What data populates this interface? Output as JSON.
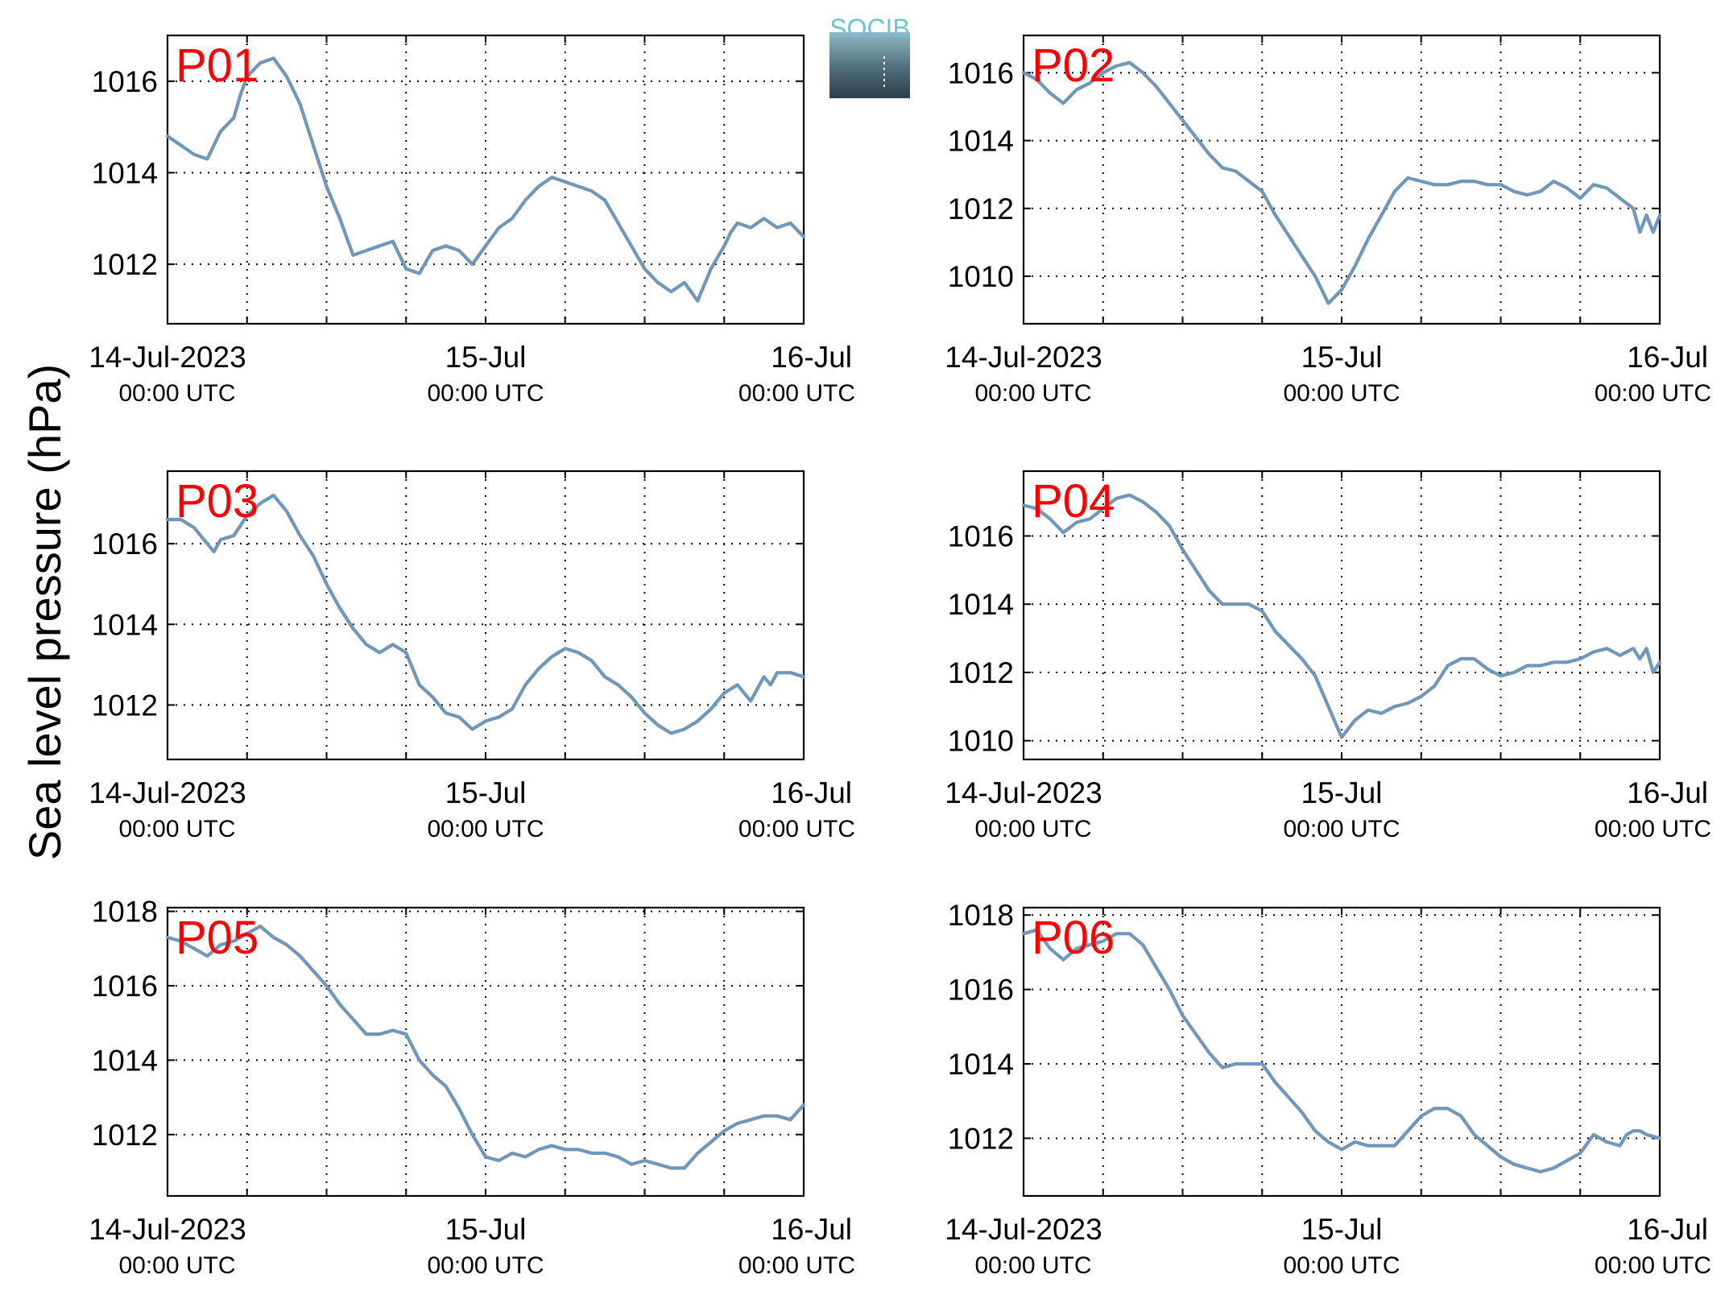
{
  "figure": {
    "ylabel": "Sea level pressure (hPa)",
    "logo_text": "SOCIB",
    "colors": {
      "series": "#6f97bb",
      "panel_label": "#ff0000",
      "logo_top": "#6cc3d4",
      "logo_bottom": "#2d3e4a"
    }
  },
  "chart_data": [
    {
      "type": "line",
      "panel": "P01",
      "x_labels": [
        {
          "main": "14-Jul-2023",
          "sub": "00:00 UTC"
        },
        {
          "main": "15-Jul",
          "sub": "00:00 UTC"
        },
        {
          "main": "16-Jul",
          "sub": "00:00 UTC"
        }
      ],
      "x_unit": "hours since 14-Jul-2023 00:00 UTC",
      "xlim": [
        0,
        48
      ],
      "ylim": [
        1010.7,
        1017.0
      ],
      "yticks": [
        1012,
        1014,
        1016
      ],
      "grid": true,
      "series": [
        {
          "x": [
            0,
            1,
            2,
            3,
            3.5,
            4,
            5,
            5.5,
            6,
            7,
            8,
            9,
            10,
            11,
            12,
            13,
            14,
            15,
            16,
            17,
            18,
            19,
            20,
            21,
            22,
            23,
            24,
            25,
            26,
            27,
            28,
            29,
            30,
            31,
            32,
            33,
            34,
            35,
            36,
            37,
            38,
            39,
            40,
            41,
            42,
            42.5,
            43,
            44,
            45,
            46,
            47,
            48
          ],
          "y": [
            1014.8,
            1014.6,
            1014.4,
            1014.3,
            1014.6,
            1014.9,
            1015.2,
            1015.7,
            1016.1,
            1016.4,
            1016.5,
            1016.1,
            1015.5,
            1014.6,
            1013.7,
            1013.0,
            1012.2,
            1012.3,
            1012.4,
            1012.5,
            1011.9,
            1011.8,
            1012.3,
            1012.4,
            1012.3,
            1012.0,
            1012.4,
            1012.8,
            1013.0,
            1013.4,
            1013.7,
            1013.9,
            1013.8,
            1013.7,
            1013.6,
            1013.4,
            1012.9,
            1012.4,
            1011.9,
            1011.6,
            1011.4,
            1011.6,
            1011.2,
            1011.9,
            1012.4,
            1012.7,
            1012.9,
            1012.8,
            1013.0,
            1012.8,
            1012.9,
            1012.6
          ]
        }
      ]
    },
    {
      "type": "line",
      "panel": "P02",
      "x_labels": [
        {
          "main": "14-Jul-2023",
          "sub": "00:00 UTC"
        },
        {
          "main": "15-Jul",
          "sub": "00:00 UTC"
        },
        {
          "main": "16-Jul",
          "sub": "00:00 UTC"
        }
      ],
      "x_unit": "hours since 14-Jul-2023 00:00 UTC",
      "xlim": [
        0,
        48
      ],
      "ylim": [
        1008.6,
        1017.1
      ],
      "yticks": [
        1010,
        1012,
        1014,
        1016
      ],
      "grid": true,
      "series": [
        {
          "x": [
            0,
            1,
            2,
            3,
            4,
            5,
            6,
            7,
            8,
            9,
            10,
            11,
            12,
            13,
            14,
            15,
            16,
            17,
            18,
            19,
            20,
            21,
            22,
            23,
            24,
            25,
            26,
            27,
            28,
            29,
            30,
            31,
            32,
            33,
            34,
            35,
            36,
            37,
            38,
            39,
            40,
            41,
            42,
            43,
            44,
            45,
            46,
            46.5,
            47,
            47.5,
            48
          ],
          "y": [
            1016.0,
            1015.8,
            1015.4,
            1015.1,
            1015.5,
            1015.7,
            1016.0,
            1016.2,
            1016.3,
            1016.0,
            1015.6,
            1015.1,
            1014.6,
            1014.1,
            1013.6,
            1013.2,
            1013.1,
            1012.8,
            1012.5,
            1011.8,
            1011.2,
            1010.6,
            1010.0,
            1009.2,
            1009.6,
            1010.3,
            1011.1,
            1011.8,
            1012.5,
            1012.9,
            1012.8,
            1012.7,
            1012.7,
            1012.8,
            1012.8,
            1012.7,
            1012.7,
            1012.5,
            1012.4,
            1012.5,
            1012.8,
            1012.6,
            1012.3,
            1012.7,
            1012.6,
            1012.3,
            1012.0,
            1011.3,
            1011.8,
            1011.3,
            1011.8
          ]
        }
      ]
    },
    {
      "type": "line",
      "panel": "P03",
      "x_labels": [
        {
          "main": "14-Jul-2023",
          "sub": "00:00 UTC"
        },
        {
          "main": "15-Jul",
          "sub": "00:00 UTC"
        },
        {
          "main": "16-Jul",
          "sub": "00:00 UTC"
        }
      ],
      "x_unit": "hours since 14-Jul-2023 00:00 UTC",
      "xlim": [
        0,
        48
      ],
      "ylim": [
        1010.65,
        1017.8
      ],
      "yticks": [
        1012,
        1014,
        1016
      ],
      "grid": true,
      "series": [
        {
          "x": [
            0,
            1,
            2,
            3,
            3.5,
            4,
            5,
            6,
            7,
            8,
            9,
            10,
            11,
            12,
            13,
            14,
            15,
            16,
            17,
            18,
            19,
            20,
            21,
            22,
            23,
            24,
            25,
            26,
            27,
            28,
            29,
            30,
            31,
            32,
            33,
            34,
            35,
            36,
            37,
            38,
            39,
            40,
            41,
            42,
            43,
            44,
            45,
            45.5,
            46,
            47,
            48
          ],
          "y": [
            1016.6,
            1016.6,
            1016.4,
            1016.0,
            1015.8,
            1016.1,
            1016.2,
            1016.7,
            1017.0,
            1017.2,
            1016.8,
            1016.2,
            1015.7,
            1015.0,
            1014.4,
            1013.9,
            1013.5,
            1013.3,
            1013.5,
            1013.3,
            1012.5,
            1012.2,
            1011.8,
            1011.7,
            1011.4,
            1011.6,
            1011.7,
            1011.9,
            1012.5,
            1012.9,
            1013.2,
            1013.4,
            1013.3,
            1013.1,
            1012.7,
            1012.5,
            1012.2,
            1011.8,
            1011.5,
            1011.3,
            1011.4,
            1011.6,
            1011.9,
            1012.3,
            1012.5,
            1012.1,
            1012.7,
            1012.5,
            1012.8,
            1012.8,
            1012.7
          ]
        }
      ]
    },
    {
      "type": "line",
      "panel": "P04",
      "x_labels": [
        {
          "main": "14-Jul-2023",
          "sub": "00:00 UTC"
        },
        {
          "main": "15-Jul",
          "sub": "00:00 UTC"
        },
        {
          "main": "16-Jul",
          "sub": "00:00 UTC"
        }
      ],
      "x_unit": "hours since 14-Jul-2023 00:00 UTC",
      "xlim": [
        0,
        48
      ],
      "ylim": [
        1009.45,
        1017.9
      ],
      "yticks": [
        1010,
        1012,
        1014,
        1016
      ],
      "grid": true,
      "series": [
        {
          "x": [
            0,
            1,
            2,
            3,
            4,
            5,
            6,
            7,
            8,
            9,
            10,
            11,
            12,
            13,
            14,
            15,
            16,
            17,
            18,
            19,
            20,
            21,
            22,
            23,
            24,
            25,
            26,
            27,
            28,
            29,
            30,
            31,
            32,
            33,
            34,
            35,
            36,
            37,
            38,
            39,
            40,
            41,
            42,
            43,
            44,
            45,
            46,
            46.5,
            47,
            47.5,
            48
          ],
          "y": [
            1016.9,
            1016.8,
            1016.5,
            1016.1,
            1016.4,
            1016.5,
            1016.8,
            1017.1,
            1017.2,
            1017.0,
            1016.7,
            1016.3,
            1015.6,
            1015.0,
            1014.4,
            1014.0,
            1014.0,
            1014.0,
            1013.8,
            1013.2,
            1012.8,
            1012.4,
            1011.9,
            1011.0,
            1010.1,
            1010.6,
            1010.9,
            1010.8,
            1011.0,
            1011.1,
            1011.3,
            1011.6,
            1012.2,
            1012.4,
            1012.4,
            1012.1,
            1011.9,
            1012.0,
            1012.2,
            1012.2,
            1012.3,
            1012.3,
            1012.4,
            1012.6,
            1012.7,
            1012.5,
            1012.7,
            1012.4,
            1012.7,
            1012.0,
            1012.3
          ]
        }
      ]
    },
    {
      "type": "line",
      "panel": "P05",
      "x_labels": [
        {
          "main": "14-Jul-2023",
          "sub": "00:00 UTC"
        },
        {
          "main": "15-Jul",
          "sub": "00:00 UTC"
        },
        {
          "main": "16-Jul",
          "sub": "00:00 UTC"
        }
      ],
      "x_unit": "hours since 14-Jul-2023 00:00 UTC",
      "xlim": [
        0,
        48
      ],
      "ylim": [
        1010.35,
        1018.1
      ],
      "yticks": [
        1012,
        1014,
        1016,
        1018
      ],
      "grid": true,
      "series": [
        {
          "x": [
            0,
            1,
            2,
            3,
            4,
            5,
            6,
            7,
            8,
            9,
            10,
            11,
            12,
            13,
            14,
            15,
            16,
            17,
            18,
            19,
            20,
            21,
            22,
            23,
            24,
            25,
            26,
            27,
            28,
            29,
            30,
            31,
            32,
            33,
            34,
            35,
            36,
            37,
            38,
            39,
            40,
            41,
            42,
            43,
            44,
            45,
            46,
            47,
            48
          ],
          "y": [
            1017.3,
            1017.2,
            1017.0,
            1016.8,
            1017.1,
            1017.2,
            1017.4,
            1017.6,
            1017.3,
            1017.1,
            1016.8,
            1016.4,
            1016.0,
            1015.5,
            1015.1,
            1014.7,
            1014.7,
            1014.8,
            1014.7,
            1014.0,
            1013.6,
            1013.3,
            1012.7,
            1012.0,
            1011.4,
            1011.3,
            1011.5,
            1011.4,
            1011.6,
            1011.7,
            1011.6,
            1011.6,
            1011.5,
            1011.5,
            1011.4,
            1011.2,
            1011.3,
            1011.2,
            1011.1,
            1011.1,
            1011.5,
            1011.8,
            1012.1,
            1012.3,
            1012.4,
            1012.5,
            1012.5,
            1012.4,
            1012.8
          ]
        }
      ]
    },
    {
      "type": "line",
      "panel": "P06",
      "x_labels": [
        {
          "main": "14-Jul-2023",
          "sub": "00:00 UTC"
        },
        {
          "main": "15-Jul",
          "sub": "00:00 UTC"
        },
        {
          "main": "16-Jul",
          "sub": "00:00 UTC"
        }
      ],
      "x_unit": "hours since 14-Jul-2023 00:00 UTC",
      "xlim": [
        0,
        48
      ],
      "ylim": [
        1010.45,
        1018.2
      ],
      "yticks": [
        1012,
        1014,
        1016,
        1018
      ],
      "grid": true,
      "series": [
        {
          "x": [
            0,
            1,
            2,
            3,
            4,
            5,
            6,
            7,
            8,
            9,
            10,
            11,
            12,
            13,
            14,
            15,
            16,
            17,
            18,
            19,
            20,
            21,
            22,
            23,
            24,
            25,
            26,
            27,
            28,
            29,
            30,
            31,
            32,
            33,
            34,
            35,
            36,
            37,
            38,
            39,
            40,
            41,
            42,
            43,
            44,
            45,
            45.5,
            46,
            46.5,
            47,
            48
          ],
          "y": [
            1017.5,
            1017.6,
            1017.1,
            1016.8,
            1017.1,
            1017.2,
            1017.3,
            1017.5,
            1017.5,
            1017.2,
            1016.6,
            1016.0,
            1015.3,
            1014.8,
            1014.3,
            1013.9,
            1014.0,
            1014.0,
            1014.0,
            1013.5,
            1013.1,
            1012.7,
            1012.2,
            1011.9,
            1011.7,
            1011.9,
            1011.8,
            1011.8,
            1011.8,
            1012.2,
            1012.6,
            1012.8,
            1012.8,
            1012.6,
            1012.1,
            1011.8,
            1011.5,
            1011.3,
            1011.2,
            1011.1,
            1011.2,
            1011.4,
            1011.6,
            1012.1,
            1011.9,
            1011.8,
            1012.1,
            1012.2,
            1012.2,
            1012.1,
            1012.0
          ]
        }
      ]
    }
  ]
}
